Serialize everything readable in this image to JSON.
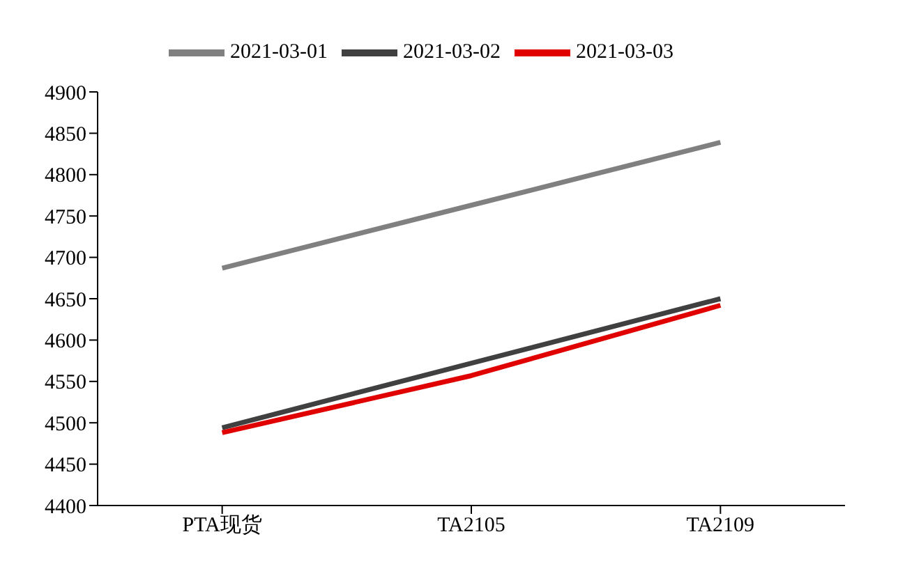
{
  "chart_data": {
    "type": "line",
    "categories": [
      "PTA现货",
      "TA2105",
      "TA2109"
    ],
    "series": [
      {
        "name": "2021-03-01",
        "color": "#808080",
        "values": [
          4687,
          4763,
          4839
        ]
      },
      {
        "name": "2021-03-02",
        "color": "#404040",
        "values": [
          4494,
          4572,
          4650
        ]
      },
      {
        "name": "2021-03-03",
        "color": "#e00000",
        "values": [
          4488,
          4557,
          4642
        ]
      }
    ],
    "ylim": [
      4400,
      4900
    ],
    "yticks": [
      4400,
      4450,
      4500,
      4550,
      4600,
      4650,
      4700,
      4750,
      4800,
      4850,
      4900
    ],
    "grid": false,
    "legend": "top",
    "marker": "none",
    "line_style": "solid"
  }
}
